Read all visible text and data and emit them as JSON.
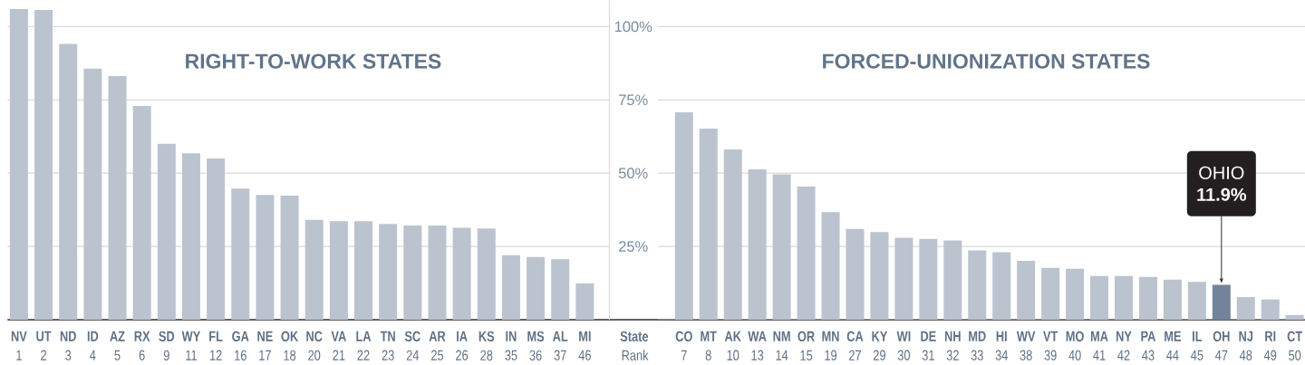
{
  "chart_data": [
    {
      "type": "bar",
      "title": "RIGHT-TO-WORK STATES",
      "xlabel": "**State** Rank",
      "categories": [
        "**NV** 1",
        "**UT** 2",
        "**ND** 3",
        "**ID** 4",
        "**AZ** 5",
        "**RX** 6",
        "**SD** 9",
        "**WY** 11",
        "**FL** 12",
        "**GA** 16",
        "**NE** 17",
        "**OK** 18",
        "**NC** 20",
        "**VA** 21",
        "**LA** 22",
        "**TN** 23",
        "**SC** 24",
        "**AR** 25",
        "**IA** 26",
        "**KS** 28",
        "**IN** 35",
        "**MS** 36",
        "**AL** 37",
        "**MI** 46"
      ],
      "values": [
        106.0,
        105.7,
        94.1,
        85.7,
        83.1,
        72.9,
        60.0,
        56.8,
        55.0,
        44.7,
        42.6,
        42.3,
        34.1,
        33.6,
        33.6,
        32.7,
        32.1,
        32.1,
        31.4,
        31.1,
        22.0,
        21.4,
        20.6,
        12.4
      ],
      "color": "#bbc3ce",
      "ylim": [
        0,
        109
      ],
      "yticks": [
        {
          "value": 25,
          "label": "25%"
        },
        {
          "value": 50,
          "label": "50%"
        },
        {
          "value": 75,
          "label": "75%"
        },
        {
          "value": 100,
          "label": "100%"
        }
      ],
      "grid": "y"
    },
    {
      "type": "bar",
      "title": "FORCED-UNIONIZATION STATES",
      "categories": [
        "**CO** 7",
        "**MT** 8",
        "**AK** 10",
        "**WA** 13",
        "**NM** 14",
        "**OR** 15",
        "**MN** 19",
        "**CA** 27",
        "**KY** 29",
        "**WI** 30",
        "**DE** 31",
        "**NH** 32",
        "**MD** 33",
        "**HI** 34",
        "**WV** 38",
        "**VT** 39",
        "**MO** 40",
        "**MA** 41",
        "**NY** 42",
        "**PA** 43",
        "**ME** 44",
        "**IL** 45",
        "**OH** 47",
        "**NJ** 48",
        "**RI** 49",
        "**CT** 50"
      ],
      "values": [
        70.8,
        65.2,
        58.1,
        51.3,
        49.6,
        45.4,
        36.7,
        31.0,
        29.9,
        28.0,
        27.6,
        27.0,
        23.6,
        23.0,
        20.1,
        17.7,
        17.4,
        14.9,
        14.9,
        14.6,
        13.7,
        12.9,
        11.9,
        7.7,
        6.9,
        1.6
      ],
      "colors": [
        "#bbc3ce",
        "#bbc3ce",
        "#bbc3ce",
        "#bbc3ce",
        "#bbc3ce",
        "#bbc3ce",
        "#bbc3ce",
        "#bbc3ce",
        "#bbc3ce",
        "#bbc3ce",
        "#bbc3ce",
        "#bbc3ce",
        "#bbc3ce",
        "#bbc3ce",
        "#bbc3ce",
        "#bbc3ce",
        "#bbc3ce",
        "#bbc3ce",
        "#bbc3ce",
        "#bbc3ce",
        "#bbc3ce",
        "#bbc3ce",
        "#72839a",
        "#bbc3ce",
        "#bbc3ce",
        "#bbc3ce"
      ],
      "value_labels": [
        null,
        null,
        null,
        null,
        null,
        null,
        null,
        null,
        null,
        null,
        null,
        null,
        null,
        null,
        null,
        null,
        null,
        null,
        null,
        null,
        null,
        null,
        "OHIO **11.9%**",
        null,
        null,
        null
      ],
      "ylim": [
        0,
        100
      ],
      "yticks": [
        {
          "value": 25,
          "label": null
        },
        {
          "value": 50,
          "label": null
        },
        {
          "value": 75,
          "label": null
        },
        {
          "value": 100,
          "label": null
        }
      ],
      "grid": "y",
      "tick_labels": "x"
    }
  ]
}
